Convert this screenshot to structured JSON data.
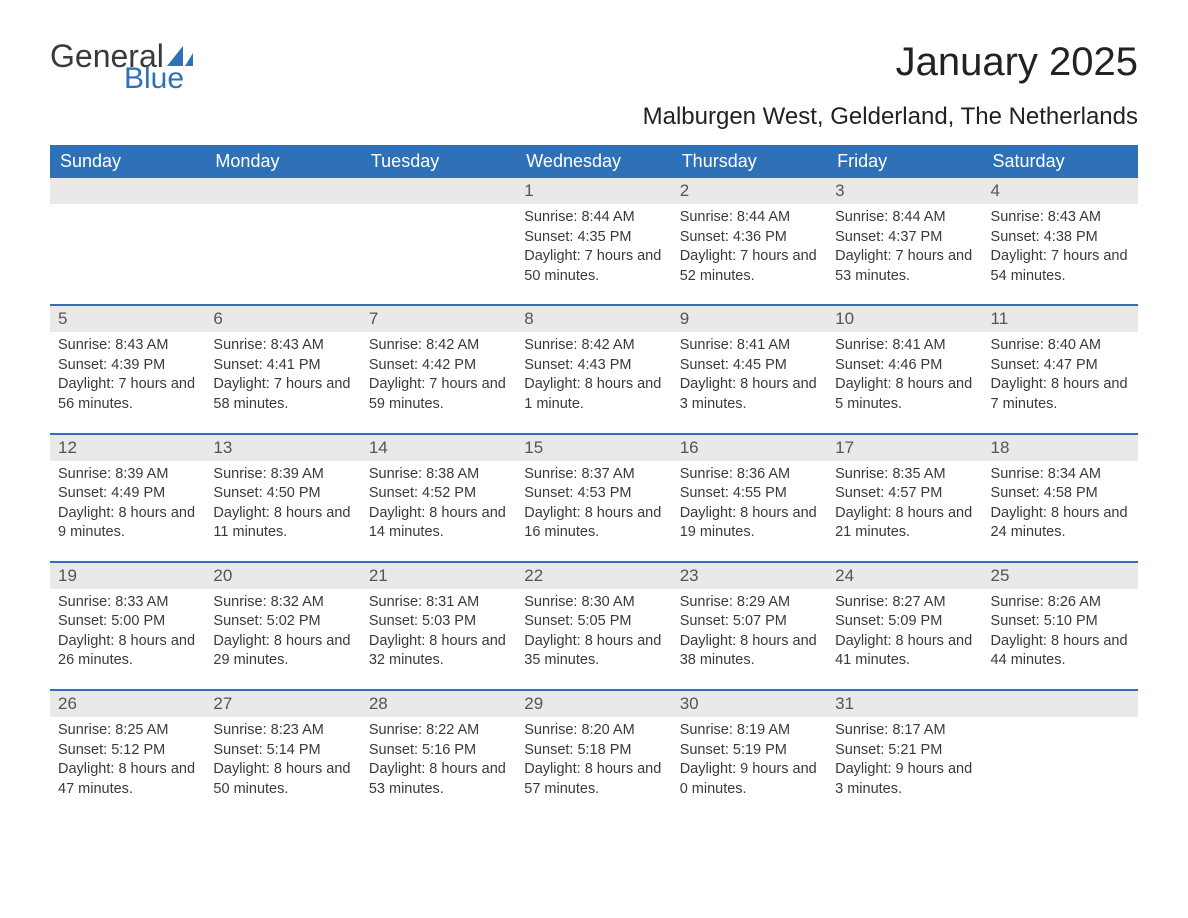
{
  "brand": {
    "word1": "General",
    "word2": "Blue",
    "text_color": "#3a3a3a",
    "accent_color": "#2f71b8"
  },
  "title": {
    "month": "January 2025",
    "location": "Malburgen West, Gelderland, The Netherlands"
  },
  "colors": {
    "header_bg": "#2f71b8",
    "header_text": "#ffffff",
    "daynum_bg": "#e9e9e9",
    "body_text": "#3a3a3a",
    "page_bg": "#ffffff"
  },
  "day_headers": [
    "Sunday",
    "Monday",
    "Tuesday",
    "Wednesday",
    "Thursday",
    "Friday",
    "Saturday"
  ],
  "weeks": [
    [
      {
        "n": "",
        "sunrise": "",
        "sunset": "",
        "daylight": ""
      },
      {
        "n": "",
        "sunrise": "",
        "sunset": "",
        "daylight": ""
      },
      {
        "n": "",
        "sunrise": "",
        "sunset": "",
        "daylight": ""
      },
      {
        "n": "1",
        "sunrise": "Sunrise: 8:44 AM",
        "sunset": "Sunset: 4:35 PM",
        "daylight": "Daylight: 7 hours and 50 minutes."
      },
      {
        "n": "2",
        "sunrise": "Sunrise: 8:44 AM",
        "sunset": "Sunset: 4:36 PM",
        "daylight": "Daylight: 7 hours and 52 minutes."
      },
      {
        "n": "3",
        "sunrise": "Sunrise: 8:44 AM",
        "sunset": "Sunset: 4:37 PM",
        "daylight": "Daylight: 7 hours and 53 minutes."
      },
      {
        "n": "4",
        "sunrise": "Sunrise: 8:43 AM",
        "sunset": "Sunset: 4:38 PM",
        "daylight": "Daylight: 7 hours and 54 minutes."
      }
    ],
    [
      {
        "n": "5",
        "sunrise": "Sunrise: 8:43 AM",
        "sunset": "Sunset: 4:39 PM",
        "daylight": "Daylight: 7 hours and 56 minutes."
      },
      {
        "n": "6",
        "sunrise": "Sunrise: 8:43 AM",
        "sunset": "Sunset: 4:41 PM",
        "daylight": "Daylight: 7 hours and 58 minutes."
      },
      {
        "n": "7",
        "sunrise": "Sunrise: 8:42 AM",
        "sunset": "Sunset: 4:42 PM",
        "daylight": "Daylight: 7 hours and 59 minutes."
      },
      {
        "n": "8",
        "sunrise": "Sunrise: 8:42 AM",
        "sunset": "Sunset: 4:43 PM",
        "daylight": "Daylight: 8 hours and 1 minute."
      },
      {
        "n": "9",
        "sunrise": "Sunrise: 8:41 AM",
        "sunset": "Sunset: 4:45 PM",
        "daylight": "Daylight: 8 hours and 3 minutes."
      },
      {
        "n": "10",
        "sunrise": "Sunrise: 8:41 AM",
        "sunset": "Sunset: 4:46 PM",
        "daylight": "Daylight: 8 hours and 5 minutes."
      },
      {
        "n": "11",
        "sunrise": "Sunrise: 8:40 AM",
        "sunset": "Sunset: 4:47 PM",
        "daylight": "Daylight: 8 hours and 7 minutes."
      }
    ],
    [
      {
        "n": "12",
        "sunrise": "Sunrise: 8:39 AM",
        "sunset": "Sunset: 4:49 PM",
        "daylight": "Daylight: 8 hours and 9 minutes."
      },
      {
        "n": "13",
        "sunrise": "Sunrise: 8:39 AM",
        "sunset": "Sunset: 4:50 PM",
        "daylight": "Daylight: 8 hours and 11 minutes."
      },
      {
        "n": "14",
        "sunrise": "Sunrise: 8:38 AM",
        "sunset": "Sunset: 4:52 PM",
        "daylight": "Daylight: 8 hours and 14 minutes."
      },
      {
        "n": "15",
        "sunrise": "Sunrise: 8:37 AM",
        "sunset": "Sunset: 4:53 PM",
        "daylight": "Daylight: 8 hours and 16 minutes."
      },
      {
        "n": "16",
        "sunrise": "Sunrise: 8:36 AM",
        "sunset": "Sunset: 4:55 PM",
        "daylight": "Daylight: 8 hours and 19 minutes."
      },
      {
        "n": "17",
        "sunrise": "Sunrise: 8:35 AM",
        "sunset": "Sunset: 4:57 PM",
        "daylight": "Daylight: 8 hours and 21 minutes."
      },
      {
        "n": "18",
        "sunrise": "Sunrise: 8:34 AM",
        "sunset": "Sunset: 4:58 PM",
        "daylight": "Daylight: 8 hours and 24 minutes."
      }
    ],
    [
      {
        "n": "19",
        "sunrise": "Sunrise: 8:33 AM",
        "sunset": "Sunset: 5:00 PM",
        "daylight": "Daylight: 8 hours and 26 minutes."
      },
      {
        "n": "20",
        "sunrise": "Sunrise: 8:32 AM",
        "sunset": "Sunset: 5:02 PM",
        "daylight": "Daylight: 8 hours and 29 minutes."
      },
      {
        "n": "21",
        "sunrise": "Sunrise: 8:31 AM",
        "sunset": "Sunset: 5:03 PM",
        "daylight": "Daylight: 8 hours and 32 minutes."
      },
      {
        "n": "22",
        "sunrise": "Sunrise: 8:30 AM",
        "sunset": "Sunset: 5:05 PM",
        "daylight": "Daylight: 8 hours and 35 minutes."
      },
      {
        "n": "23",
        "sunrise": "Sunrise: 8:29 AM",
        "sunset": "Sunset: 5:07 PM",
        "daylight": "Daylight: 8 hours and 38 minutes."
      },
      {
        "n": "24",
        "sunrise": "Sunrise: 8:27 AM",
        "sunset": "Sunset: 5:09 PM",
        "daylight": "Daylight: 8 hours and 41 minutes."
      },
      {
        "n": "25",
        "sunrise": "Sunrise: 8:26 AM",
        "sunset": "Sunset: 5:10 PM",
        "daylight": "Daylight: 8 hours and 44 minutes."
      }
    ],
    [
      {
        "n": "26",
        "sunrise": "Sunrise: 8:25 AM",
        "sunset": "Sunset: 5:12 PM",
        "daylight": "Daylight: 8 hours and 47 minutes."
      },
      {
        "n": "27",
        "sunrise": "Sunrise: 8:23 AM",
        "sunset": "Sunset: 5:14 PM",
        "daylight": "Daylight: 8 hours and 50 minutes."
      },
      {
        "n": "28",
        "sunrise": "Sunrise: 8:22 AM",
        "sunset": "Sunset: 5:16 PM",
        "daylight": "Daylight: 8 hours and 53 minutes."
      },
      {
        "n": "29",
        "sunrise": "Sunrise: 8:20 AM",
        "sunset": "Sunset: 5:18 PM",
        "daylight": "Daylight: 8 hours and 57 minutes."
      },
      {
        "n": "30",
        "sunrise": "Sunrise: 8:19 AM",
        "sunset": "Sunset: 5:19 PM",
        "daylight": "Daylight: 9 hours and 0 minutes."
      },
      {
        "n": "31",
        "sunrise": "Sunrise: 8:17 AM",
        "sunset": "Sunset: 5:21 PM",
        "daylight": "Daylight: 9 hours and 3 minutes."
      },
      {
        "n": "",
        "sunrise": "",
        "sunset": "",
        "daylight": ""
      }
    ]
  ]
}
